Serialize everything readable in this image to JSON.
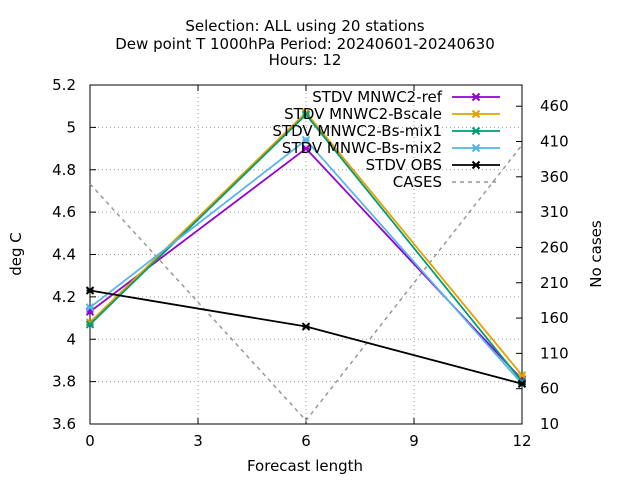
{
  "chart_data": {
    "type": "line",
    "title_lines": [
      "Selection: ALL using    20 stations",
      "Dew point T 1000hPa   Period: 20240601-20240630",
      "Hours: 12"
    ],
    "xlabel": "Forecast length",
    "ylabel": "deg C",
    "y2label": "No cases",
    "xlim": [
      0,
      12
    ],
    "ylim": [
      3.6,
      5.2
    ],
    "y2lim": [
      10,
      490
    ],
    "x_ticks": [
      "0",
      "3",
      "6",
      "9",
      "12"
    ],
    "y_ticks": [
      "3.6",
      "3.8",
      "4",
      "4.2",
      "4.4",
      "4.6",
      "4.8",
      "5",
      "5.2"
    ],
    "y2_ticks": [
      "10",
      "60",
      "110",
      "160",
      "210",
      "260",
      "310",
      "360",
      "410",
      "460"
    ],
    "grid": true,
    "legend_position": "top-right",
    "x": [
      0,
      6,
      12
    ],
    "series": [
      {
        "name": "STDV MNWC2-ref",
        "color": "#9400d3",
        "axis": "y",
        "dashed": false,
        "values": [
          4.13,
          4.9,
          3.81
        ]
      },
      {
        "name": "STDV MNWC2-Bscale",
        "color": "#e69f00",
        "axis": "y",
        "dashed": false,
        "values": [
          4.08,
          5.07,
          3.83
        ]
      },
      {
        "name": "STDV MNWC2-Bs-mix1",
        "color": "#009e73",
        "axis": "y",
        "dashed": false,
        "values": [
          4.07,
          5.06,
          3.8
        ]
      },
      {
        "name": "STDV MNWC-Bs-mix2",
        "color": "#56b4e9",
        "axis": "y",
        "dashed": false,
        "values": [
          4.15,
          4.94,
          3.79
        ]
      },
      {
        "name": "STDV OBS",
        "color": "#000000",
        "axis": "y",
        "dashed": false,
        "values": [
          4.23,
          4.06,
          3.79
        ]
      },
      {
        "name": "CASES",
        "color": "#999999",
        "axis": "y2",
        "dashed": true,
        "values": [
          350,
          15,
          405
        ]
      }
    ]
  }
}
